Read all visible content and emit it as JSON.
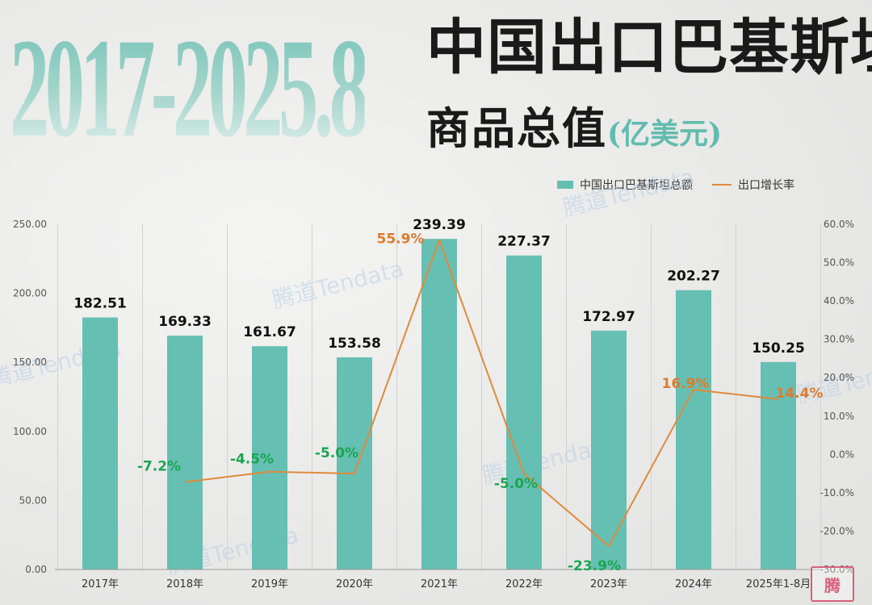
{
  "header": {
    "big_year": "2017-2025.8",
    "title_line1": "中国出口巴基斯坦",
    "title_line2": "商品总值",
    "title_unit": "(亿美元)"
  },
  "watermark": "腾道Tendata",
  "corner_logo": "腾",
  "chart_data": {
    "type": "bar",
    "categories": [
      "2017年",
      "2018年",
      "2019年",
      "2020年",
      "2021年",
      "2022年",
      "2023年",
      "2024年",
      "2025年1-8月"
    ],
    "series": [
      {
        "name": "中国出口巴基斯坦总额",
        "type": "bar",
        "axis": "left",
        "values": [
          182.51,
          169.33,
          161.67,
          153.58,
          239.39,
          227.37,
          172.97,
          202.27,
          150.25
        ],
        "labels": [
          "182.51",
          "169.33",
          "161.67",
          "153.58",
          "239.39",
          "227.37",
          "172.97",
          "202.27",
          "150.25"
        ],
        "color": "#66bfb3"
      },
      {
        "name": "出口增长率",
        "type": "line",
        "axis": "right",
        "values": [
          null,
          -7.2,
          -4.5,
          -5.0,
          55.9,
          -5.0,
          -23.9,
          16.9,
          14.4
        ],
        "labels": [
          "",
          "-7.2%",
          "-4.5%",
          "-5.0%",
          "55.9%",
          "-5.0%",
          "-23.9%",
          "16.9%",
          "14.4%"
        ],
        "color": "#e08a3c",
        "positive_label_color": "#e07a2a",
        "negative_label_color": "#1aa650"
      }
    ],
    "y_left": {
      "lim": [
        0,
        250
      ],
      "ticks": [
        0,
        50,
        100,
        150,
        200,
        250
      ],
      "tick_labels": [
        "0.00",
        "50.00",
        "100.00",
        "150.00",
        "200.00",
        "250.00"
      ]
    },
    "y_right": {
      "lim": [
        -30,
        60
      ],
      "ticks": [
        -30,
        -20,
        -10,
        0,
        10,
        20,
        30,
        40,
        50,
        60
      ],
      "tick_labels": [
        "-30.0%",
        "-20.0%",
        "-10.0%",
        "0.0%",
        "10.0%",
        "20.0%",
        "30.0%",
        "40.0%",
        "50.0%",
        "60.0%"
      ]
    },
    "legend_position": "top-right",
    "grid": "vertical"
  }
}
